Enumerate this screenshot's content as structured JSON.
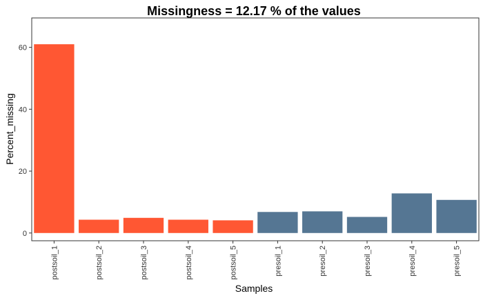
{
  "chart_data": {
    "type": "bar",
    "title": "Missingness =  12.17 % of the values",
    "xlabel": "Samples",
    "ylabel": "Percent_missing",
    "categories": [
      "postsoil_1",
      "postsoil_2",
      "postsoil_3",
      "postsoil_4",
      "postsoil_5",
      "presoil_1",
      "presoil_2",
      "presoil_3",
      "presoil_4",
      "presoil_5"
    ],
    "values": [
      61.0,
      4.3,
      4.9,
      4.3,
      4.1,
      6.8,
      7.0,
      5.2,
      12.8,
      10.7
    ],
    "bar_colors": [
      "#FF5733",
      "#FF5733",
      "#FF5733",
      "#FF5733",
      "#FF5733",
      "#557693",
      "#557693",
      "#557693",
      "#557693",
      "#557693"
    ],
    "ylim": [
      -2.5,
      69.5
    ],
    "yticks": [
      0,
      20,
      40,
      60
    ],
    "grid": false,
    "legend": "none"
  }
}
